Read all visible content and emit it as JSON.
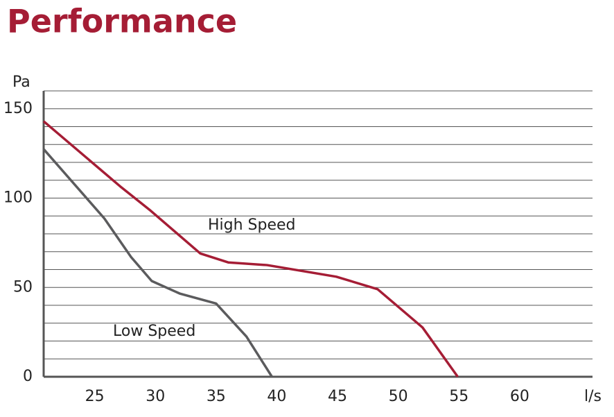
{
  "chart_data": {
    "type": "line",
    "title": "Performance",
    "y_label": "Pa",
    "x_label": "l/s",
    "xlim": [
      20.8,
      66
    ],
    "xticks": [
      25,
      30,
      35,
      40,
      45,
      50,
      55,
      60
    ],
    "ylim": [
      0,
      160
    ],
    "yticks": [
      0,
      50,
      100,
      150
    ],
    "y_minor_grid": [
      10,
      20,
      30,
      40,
      60,
      70,
      80,
      90,
      110,
      120,
      130,
      140,
      160
    ],
    "grid": true,
    "series": [
      {
        "name": "High Speed",
        "color": "#a51d35",
        "x": [
          20.8,
          27.2,
          29.6,
          33.7,
          36,
          39.2,
          44.9,
          48.3,
          52,
          54.9
        ],
        "values": [
          143,
          106,
          93,
          69,
          64,
          62.5,
          56,
          49,
          27.6,
          0
        ]
      },
      {
        "name": "Low Speed",
        "color": "#5b5b5d",
        "x": [
          20.8,
          25.8,
          28,
          29.7,
          32,
          35,
          37.5,
          39.6
        ],
        "values": [
          127.4,
          88.6,
          67,
          53.6,
          46.6,
          41,
          22.5,
          0
        ]
      }
    ]
  }
}
